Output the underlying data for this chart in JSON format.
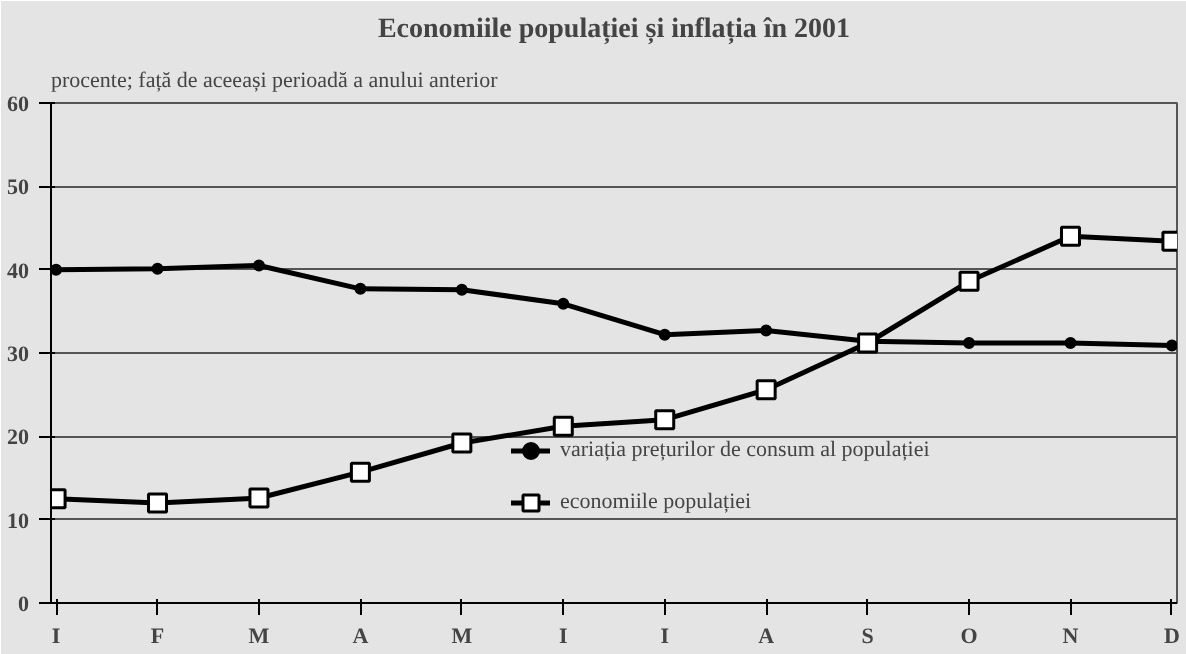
{
  "chart_data": {
    "type": "line",
    "title": "Economiile populației și inflația în 2001",
    "subtitle": "procente; față de aceeași perioadă a anului anterior",
    "categories": [
      "I",
      "F",
      "M",
      "A",
      "M",
      "I",
      "I",
      "A",
      "S",
      "O",
      "N",
      "D"
    ],
    "series": [
      {
        "name": "variația prețurilor de consum al populației",
        "color": "#000000",
        "marker": "circle",
        "values": [
          40.0,
          40.1,
          40.5,
          37.7,
          37.6,
          35.9,
          32.2,
          32.7,
          31.4,
          31.2,
          31.2,
          30.9
        ]
      },
      {
        "name": "economiile populației",
        "color": "#000000",
        "marker": "square",
        "values": [
          12.5,
          12.0,
          12.6,
          15.7,
          19.2,
          21.2,
          22.0,
          25.6,
          31.2,
          38.6,
          44.0,
          43.4
        ]
      }
    ],
    "ylim": [
      0,
      60
    ],
    "yticks": [
      0,
      10,
      20,
      30,
      40,
      50,
      60
    ],
    "grid": "y",
    "legend": "bottom",
    "line_style": "solid"
  }
}
